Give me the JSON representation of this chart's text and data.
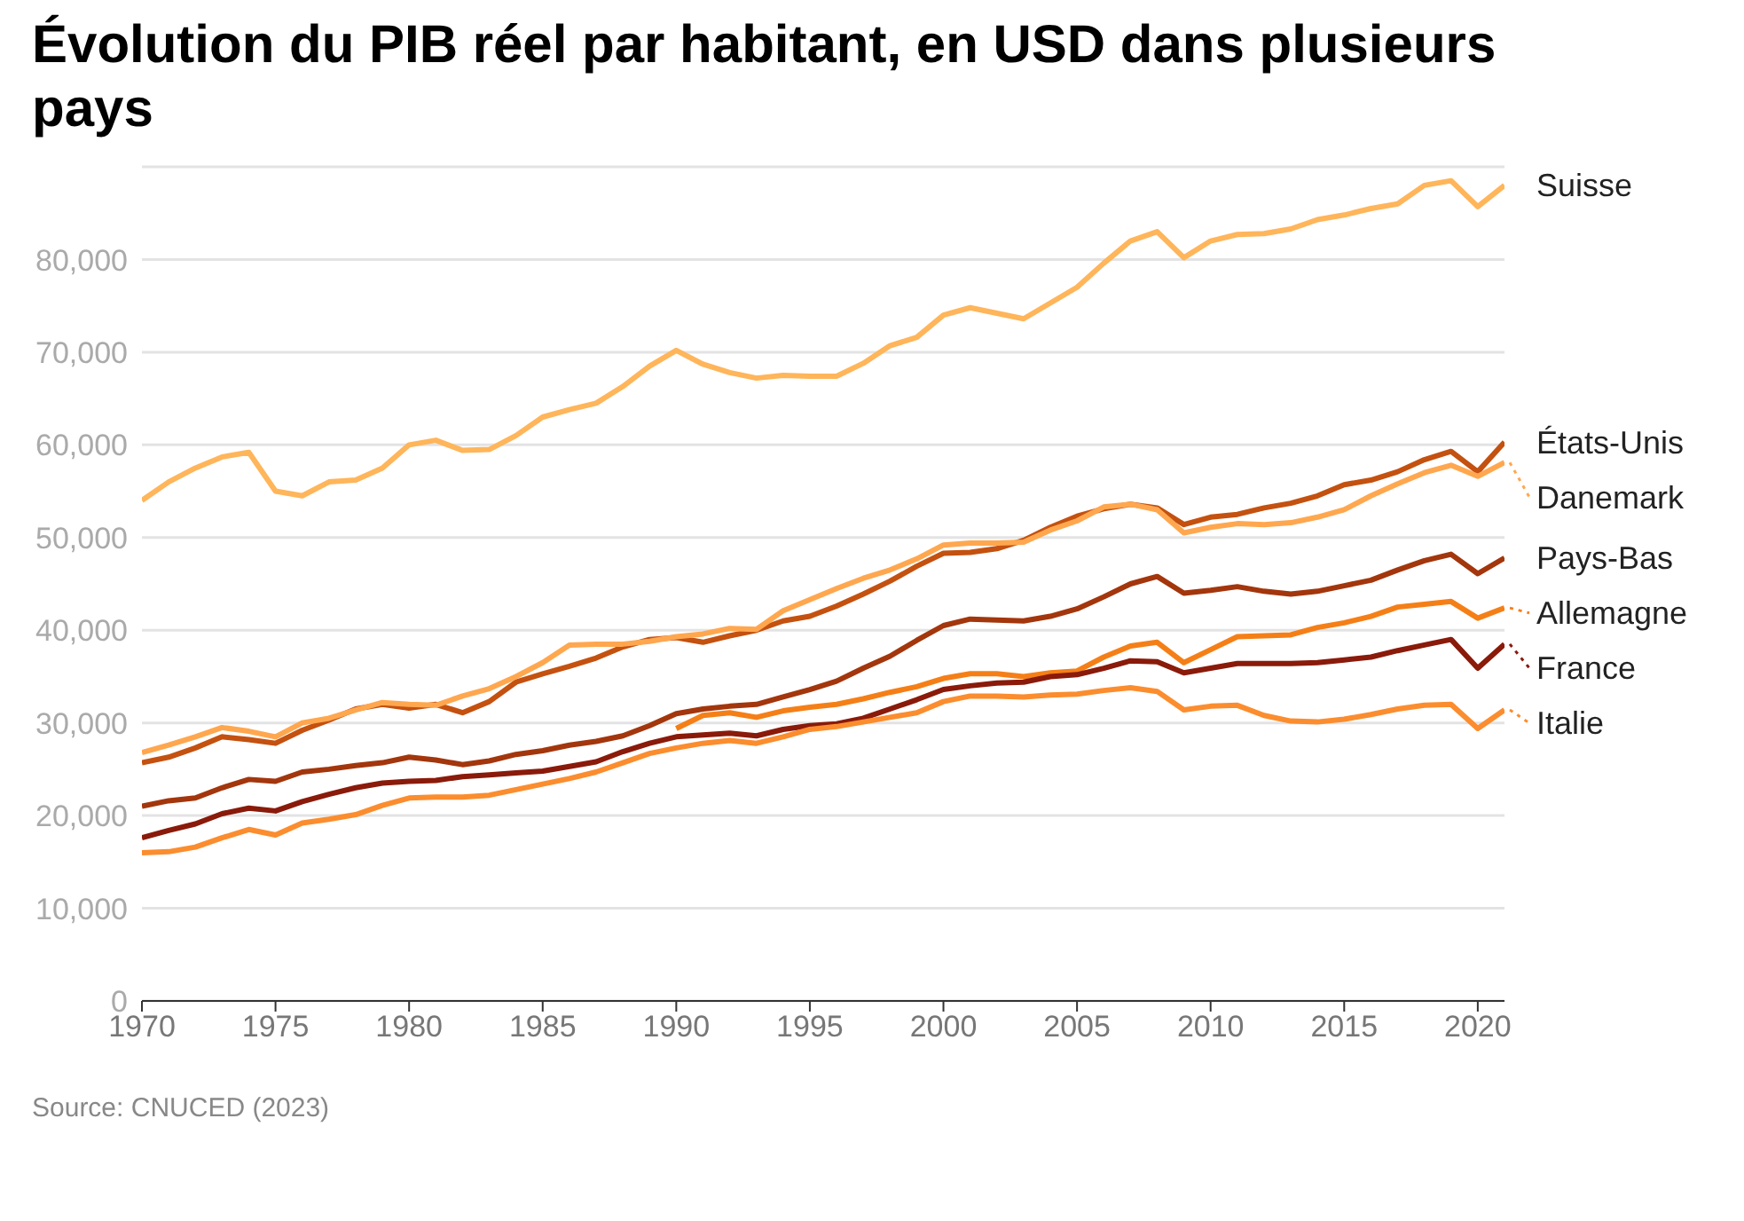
{
  "chart_data": {
    "type": "line",
    "title": "Évolution du PIB réel par habitant, en USD dans plusieurs pays",
    "x": [
      1970,
      1971,
      1972,
      1973,
      1974,
      1975,
      1976,
      1977,
      1978,
      1979,
      1980,
      1981,
      1982,
      1983,
      1984,
      1985,
      1986,
      1987,
      1988,
      1989,
      1990,
      1991,
      1992,
      1993,
      1994,
      1995,
      1996,
      1997,
      1998,
      1999,
      2000,
      2001,
      2002,
      2003,
      2004,
      2005,
      2006,
      2007,
      2008,
      2009,
      2010,
      2011,
      2012,
      2013,
      2014,
      2015,
      2016,
      2017,
      2018,
      2019,
      2020,
      2021
    ],
    "series": [
      {
        "name": "Suisse",
        "color": "#ffb55a",
        "values": [
          54000,
          56000,
          57500,
          58700,
          59200,
          55000,
          54500,
          56000,
          56200,
          57500,
          60000,
          60500,
          59400,
          59500,
          61000,
          63000,
          63800,
          64500,
          66300,
          68500,
          70200,
          68700,
          67800,
          67200,
          67500,
          67400,
          67400,
          68800,
          70700,
          71600,
          74000,
          74800,
          74200,
          73600,
          75300,
          77000,
          79600,
          82000,
          83000,
          80200,
          82000,
          82700,
          82800,
          83300,
          84300,
          84800,
          85500,
          86000,
          88000,
          88500,
          85700,
          88000
        ]
      },
      {
        "name": "États-Unis",
        "color": "#c4510f",
        "values": [
          25700,
          26300,
          27300,
          28500,
          28200,
          27800,
          29200,
          30300,
          31500,
          32000,
          31600,
          32000,
          31100,
          32300,
          34400,
          35300,
          36100,
          37000,
          38200,
          39000,
          39200,
          38700,
          39400,
          40000,
          41000,
          41500,
          42600,
          43900,
          45300,
          46900,
          48300,
          48400,
          48800,
          49700,
          51100,
          52300,
          53100,
          53600,
          53200,
          51400,
          52200,
          52500,
          53200,
          53700,
          54500,
          55700,
          56200,
          57100,
          58400,
          59300,
          57100,
          60300
        ]
      },
      {
        "name": "Danemark",
        "color": "#ffa74f",
        "values": [
          26800,
          27600,
          28500,
          29500,
          29100,
          28500,
          30000,
          30500,
          31400,
          32200,
          32000,
          31900,
          32900,
          33700,
          35000,
          36500,
          38400,
          38500,
          38500,
          38800,
          39300,
          39600,
          40200,
          40100,
          42100,
          43300,
          44500,
          45600,
          46500,
          47700,
          49200,
          49400,
          49400,
          49500,
          50800,
          51800,
          53300,
          53600,
          53000,
          50500,
          51100,
          51500,
          51400,
          51600,
          52200,
          53000,
          54500,
          55800,
          57000,
          57800,
          56600,
          58100
        ]
      },
      {
        "name": "Pays-Bas",
        "color": "#a3360c",
        "values": [
          21000,
          21600,
          21900,
          23000,
          23900,
          23700,
          24700,
          25000,
          25400,
          25700,
          26300,
          26000,
          25500,
          25900,
          26600,
          27000,
          27600,
          28000,
          28600,
          29700,
          31000,
          31500,
          31800,
          32000,
          32800,
          33600,
          34500,
          35900,
          37200,
          38900,
          40500,
          41200,
          41100,
          41000,
          41500,
          42300,
          43600,
          45000,
          45800,
          44000,
          44300,
          44700,
          44200,
          43900,
          44200,
          44800,
          45400,
          46500,
          47500,
          48200,
          46100,
          47800
        ]
      },
      {
        "name": "Allemagne",
        "color": "#f57f17",
        "values": [
          null,
          null,
          null,
          null,
          null,
          null,
          null,
          null,
          null,
          null,
          null,
          null,
          null,
          null,
          null,
          null,
          null,
          null,
          null,
          null,
          29400,
          30800,
          31100,
          30600,
          31300,
          31700,
          32000,
          32600,
          33300,
          33900,
          34800,
          35300,
          35300,
          35000,
          35400,
          35600,
          37100,
          38300,
          38700,
          36500,
          37900,
          39300,
          39400,
          39500,
          40300,
          40800,
          41500,
          42500,
          42800,
          43100,
          41300,
          42400
        ]
      },
      {
        "name": "France",
        "color": "#8a1a0a",
        "values": [
          17600,
          18400,
          19100,
          20200,
          20800,
          20500,
          21500,
          22300,
          23000,
          23500,
          23700,
          23800,
          24200,
          24400,
          24600,
          24800,
          25300,
          25800,
          26900,
          27800,
          28500,
          28700,
          28900,
          28600,
          29300,
          29700,
          29900,
          30500,
          31500,
          32500,
          33600,
          34000,
          34300,
          34400,
          35000,
          35200,
          35900,
          36700,
          36600,
          35400,
          35900,
          36400,
          36400,
          36400,
          36500,
          36800,
          37100,
          37800,
          38400,
          39000,
          35900,
          38500
        ]
      },
      {
        "name": "Italie",
        "color": "#fb8d2e",
        "values": [
          16000,
          16100,
          16600,
          17600,
          18500,
          17900,
          19200,
          19600,
          20100,
          21100,
          21900,
          22000,
          22000,
          22200,
          22800,
          23400,
          24000,
          24700,
          25700,
          26700,
          27300,
          27800,
          28100,
          27800,
          28500,
          29300,
          29600,
          30100,
          30600,
          31100,
          32300,
          32900,
          32900,
          32800,
          33000,
          33100,
          33500,
          33800,
          33400,
          31400,
          31800,
          31900,
          30800,
          30200,
          30100,
          30400,
          30900,
          31500,
          31900,
          32000,
          29400,
          31400
        ]
      }
    ],
    "xlim": [
      1970,
      2021
    ],
    "xticks": [
      1970,
      1975,
      1980,
      1985,
      1990,
      1995,
      2000,
      2005,
      2010,
      2015,
      2020
    ],
    "ylim": [
      0,
      90000
    ],
    "yticks": [
      0,
      {
        "value": 10000,
        "label": "10,000"
      },
      {
        "value": 20000,
        "label": "20,000"
      },
      {
        "value": 30000,
        "label": "30,000"
      },
      {
        "value": 40000,
        "label": "40,000"
      },
      {
        "value": 50000,
        "label": "50,000"
      },
      {
        "value": 60000,
        "label": "60,000"
      },
      {
        "value": 70000,
        "label": "70,000"
      },
      {
        "value": 80000,
        "label": "80,000"
      }
    ],
    "grid": "y",
    "legend": "right",
    "marker": "none",
    "line_style": "solid",
    "annotations": [
      "Source: CNUCED (2023)"
    ]
  }
}
